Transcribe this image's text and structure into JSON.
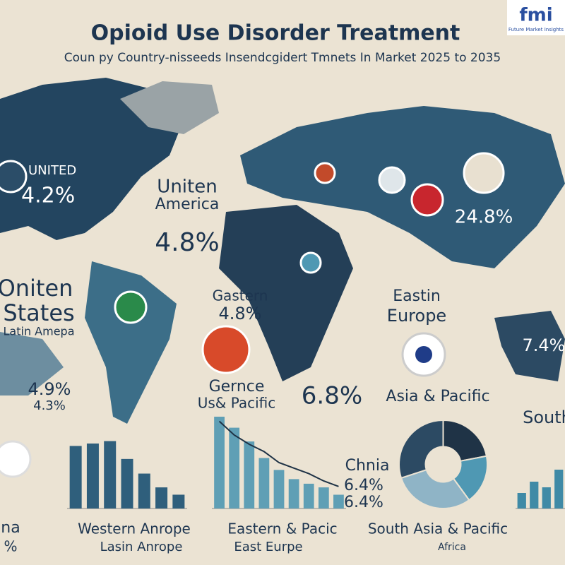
{
  "header": {
    "title": "Opioid Use Disorder Treatment",
    "subtitle": "Coun py Country-nisseeds Insendcgidert Tmnets In Market 2025 to 2035"
  },
  "logo": {
    "mark": "fmi",
    "text": "Future Market Insights"
  },
  "map_labels": [
    "UNITED",
    "4.2%",
    "Uniten",
    "America",
    "4.8%",
    "Oniten",
    "States",
    "Latin Amepa",
    "Gastern",
    "4.8%",
    "Eastin",
    "Europe",
    "24.8%",
    "7.4%",
    "4.9%",
    "4.3%",
    "Gernce",
    "Us& Pacific",
    "6.8%",
    "Asia & Pacific",
    "South",
    "Chnia",
    "6.4%",
    "6.4%",
    "Western Anrope",
    "Lasin Anrope",
    "Eastern & Pacic",
    "East Eurpe",
    "South Asia & Pacific",
    "Africa",
    "na",
    "%"
  ],
  "charts": [
    {
      "type": "bar",
      "values": [
        77,
        80,
        83,
        61,
        43,
        26,
        17
      ],
      "ylim": [
        0,
        100
      ],
      "color": "#2f5f7c"
    },
    {
      "type": "bar",
      "values": [
        100,
        88,
        73,
        55,
        42,
        32,
        27,
        23,
        15
      ],
      "line": [
        95,
        80,
        70,
        62,
        50,
        44,
        38,
        30,
        24
      ],
      "ylim": [
        0,
        100
      ],
      "color": "#5f9fb5"
    },
    {
      "type": "pie",
      "values": [
        22,
        18,
        30,
        30
      ],
      "colors": [
        "#1f3346",
        "#4f98b3",
        "#8fb4c6",
        "#2c4a63"
      ]
    },
    {
      "type": "bar",
      "values": [
        22,
        38,
        30,
        55
      ],
      "ylim": [
        0,
        100
      ],
      "color": "#3f8aa6"
    }
  ]
}
